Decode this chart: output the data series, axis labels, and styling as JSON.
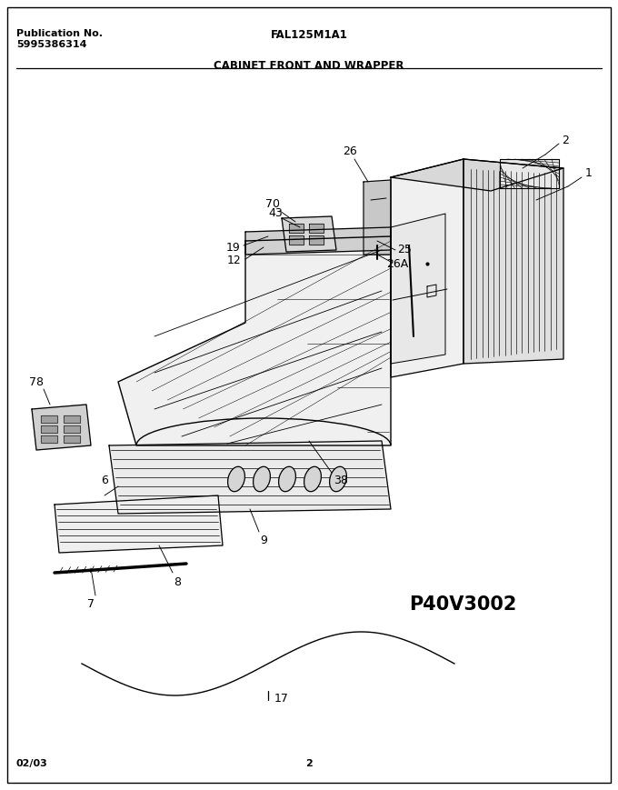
{
  "title": "FAL125M1A1",
  "pub_label": "Publication No.",
  "pub_number": "5995386314",
  "section_title": "CABINET FRONT AND WRAPPER",
  "model_code": "P40V3002",
  "date": "02/03",
  "page": "2",
  "bg_color": "#ffffff",
  "border_color": "#000000",
  "text_color": "#000000",
  "figsize": [
    6.8,
    8.69
  ],
  "dpi": 100
}
